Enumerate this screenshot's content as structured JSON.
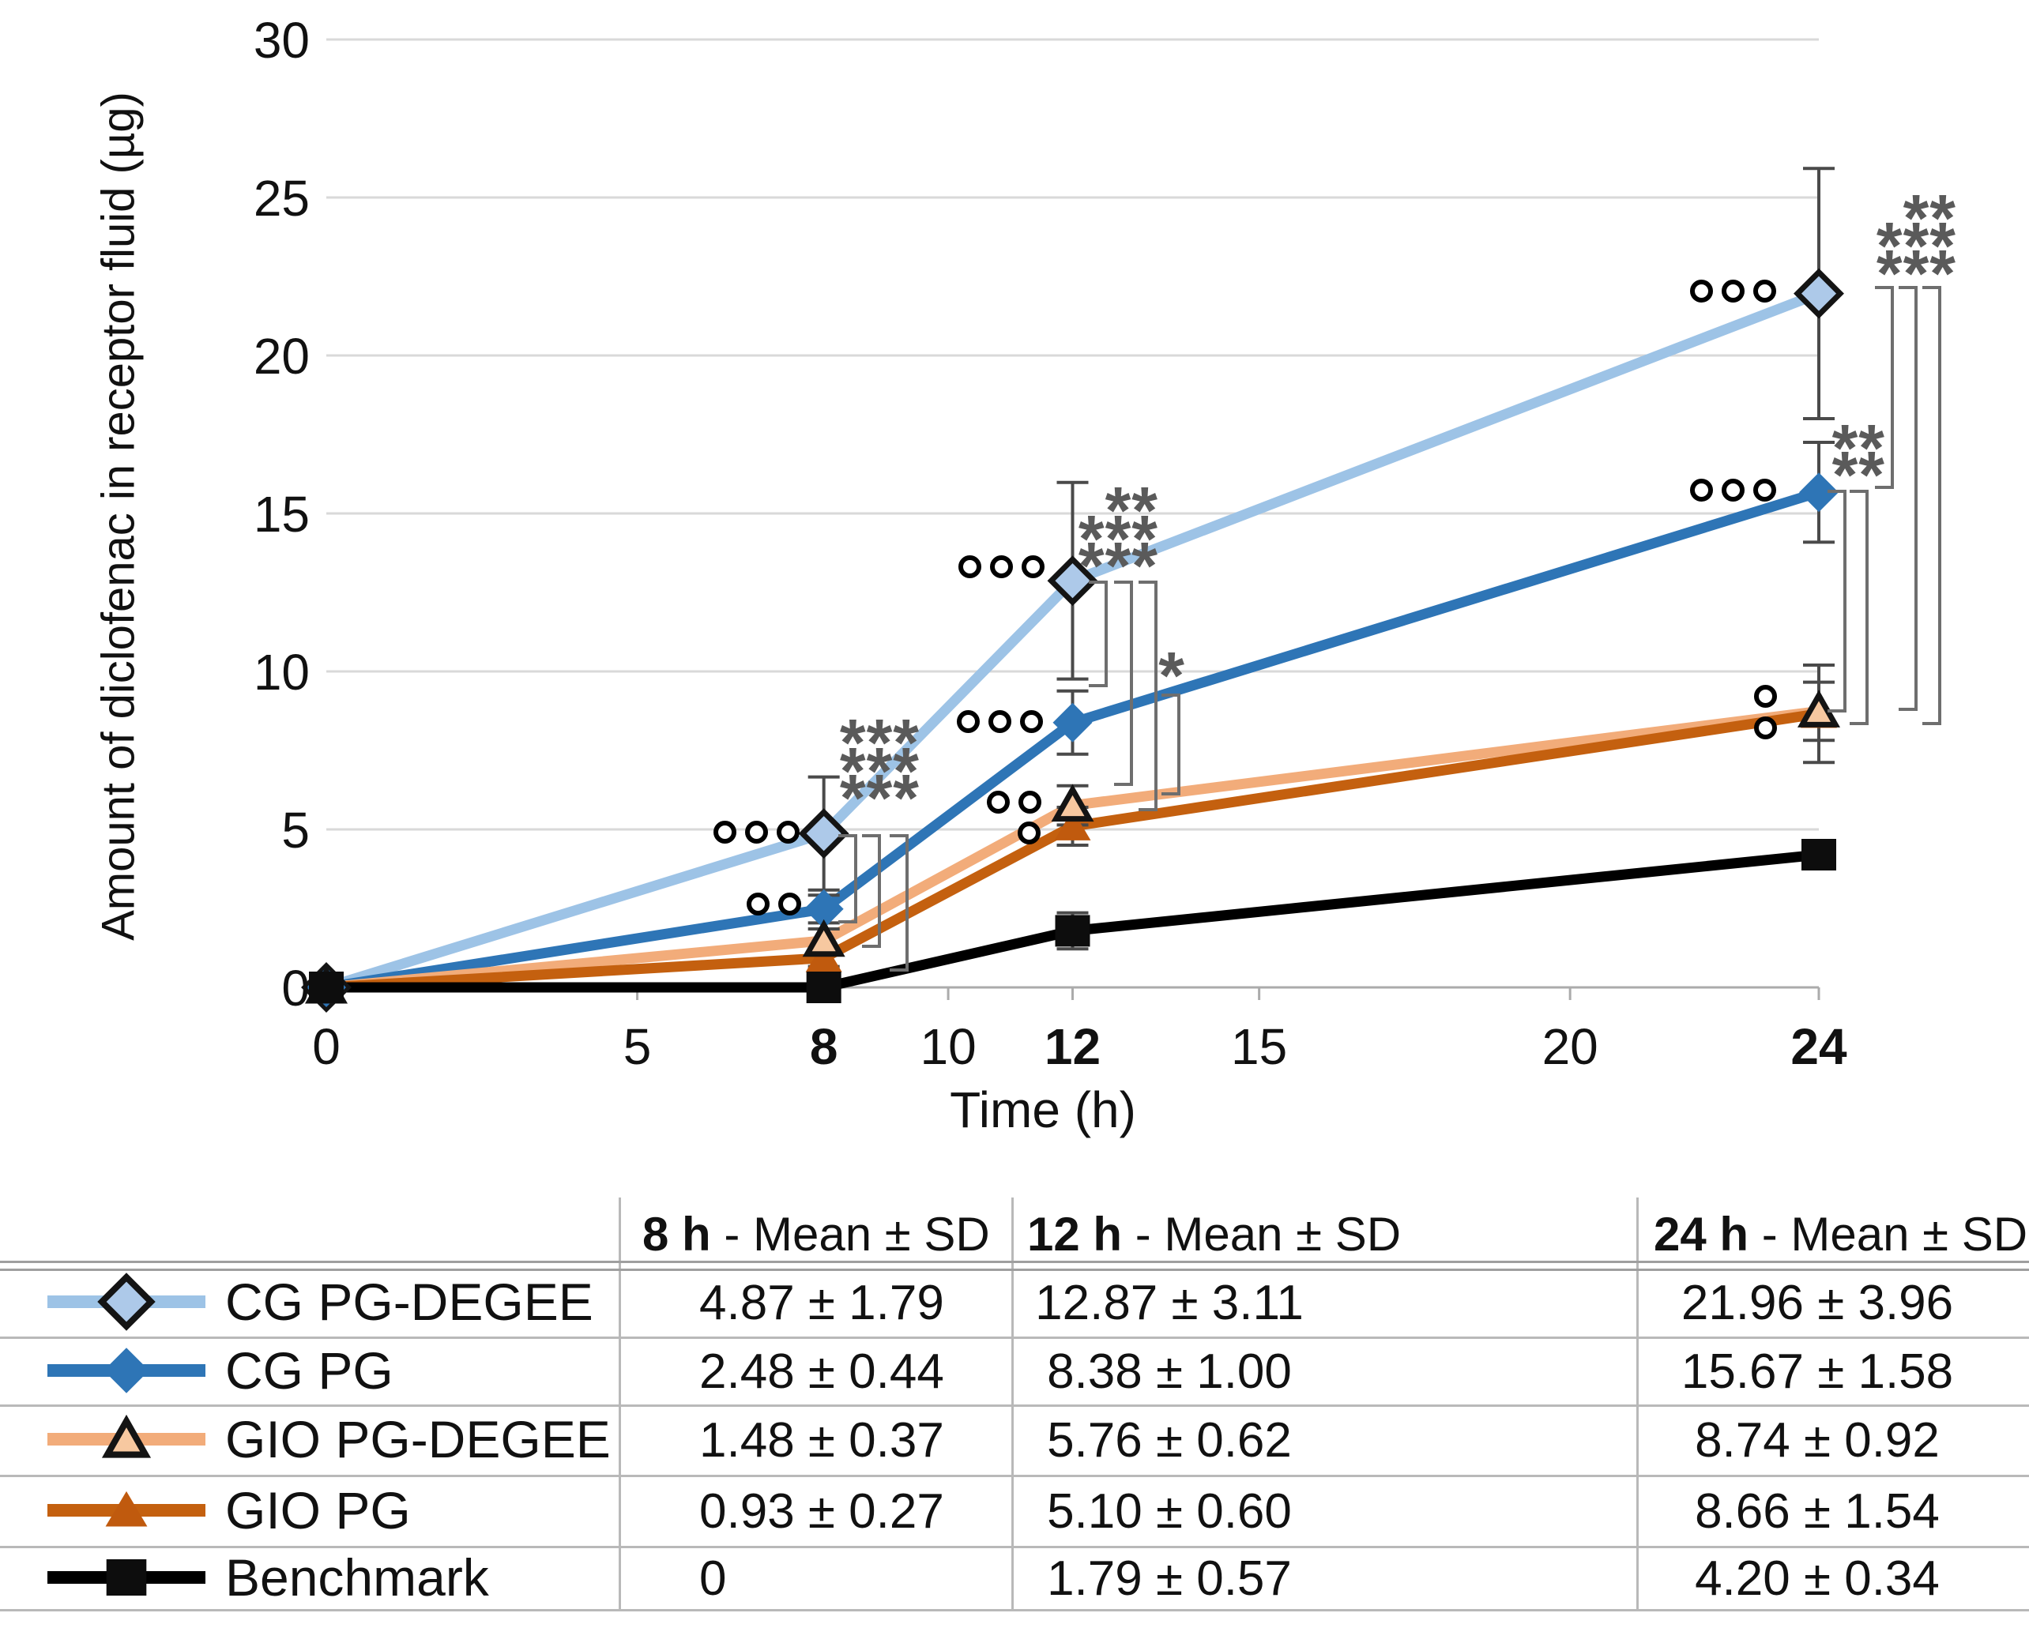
{
  "chart_data": {
    "type": "line",
    "title": "",
    "xlabel": "Time (h)",
    "ylabel": "Amount of diclofenac in receptor fluid (µg)",
    "xlim": [
      0,
      24
    ],
    "ylim": [
      0,
      30
    ],
    "grid": "horizontal",
    "legend_position": "table-below",
    "x_ticks": [
      {
        "v": 0,
        "label": "0",
        "bold": false
      },
      {
        "v": 5,
        "label": "5",
        "bold": false
      },
      {
        "v": 8,
        "label": "8",
        "bold": true
      },
      {
        "v": 10,
        "label": "10",
        "bold": false
      },
      {
        "v": 12,
        "label": "12",
        "bold": true
      },
      {
        "v": 15,
        "label": "15",
        "bold": false
      },
      {
        "v": 20,
        "label": "20",
        "bold": false
      },
      {
        "v": 24,
        "label": "24",
        "bold": true
      }
    ],
    "y_ticks": [
      0,
      5,
      10,
      15,
      20,
      25,
      30
    ],
    "x": [
      0,
      8,
      12,
      24
    ],
    "series": [
      {
        "name": "CG PG-DEGEE",
        "color": "#9DC3E6",
        "marker": "diamond-open",
        "marker_fill": "#ADC9E9",
        "values": [
          0,
          4.87,
          12.87,
          21.96
        ],
        "sd": [
          0,
          1.79,
          3.11,
          3.96
        ]
      },
      {
        "name": "CG PG",
        "color": "#2E75B6",
        "marker": "diamond-filled",
        "marker_fill": "#2E75B6",
        "values": [
          0,
          2.48,
          8.38,
          15.67
        ],
        "sd": [
          0,
          0.44,
          1.0,
          1.58
        ]
      },
      {
        "name": "GIO PG-DEGEE",
        "color": "#F2AC7A",
        "marker": "triangle-open",
        "marker_fill": "#F7C8A0",
        "values": [
          0,
          1.48,
          5.76,
          8.74
        ],
        "sd": [
          0,
          0.37,
          0.62,
          0.92
        ]
      },
      {
        "name": "GIO PG",
        "color": "#C4600F",
        "marker": "triangle-filled",
        "marker_fill": "#C05A0E",
        "values": [
          0,
          0.93,
          5.1,
          8.66
        ],
        "sd": [
          0,
          0.27,
          0.6,
          1.54
        ]
      },
      {
        "name": "Benchmark",
        "color": "#000000",
        "marker": "square-filled",
        "marker_fill": "#0d0d0d",
        "values": [
          0,
          0,
          1.79,
          4.2
        ],
        "sd": [
          0,
          0,
          0.57,
          0.34
        ]
      }
    ],
    "annotations": {
      "circle_symbol": "°",
      "asterisk_symbol": "*",
      "circle_groups": [
        {
          "n": 3,
          "x_right": 1012,
          "y": 1053
        },
        {
          "n": 2,
          "x_right": 1014,
          "y": 1144
        },
        {
          "n": 3,
          "x_right": 1322,
          "y": 717
        },
        {
          "n": 3,
          "x_right": 1320,
          "y": 913
        },
        {
          "n": 2,
          "x_right": 1318,
          "y": 1015
        },
        {
          "n": 1,
          "x_right": 1317,
          "y": 1054
        },
        {
          "n": 3,
          "x_right": 2248,
          "y": 368
        },
        {
          "n": 3,
          "x_right": 2248,
          "y": 620
        },
        {
          "n": 1,
          "x_right": 2249,
          "y": 881
        },
        {
          "n": 1,
          "x_right": 2249,
          "y": 921
        }
      ],
      "asterisk_blocks": [
        {
          "x_right": 1164,
          "rows": [
            "***",
            "***",
            "***"
          ],
          "row_y": [
            930,
            966,
            1000
          ]
        },
        {
          "x_right": 1466,
          "rows": [
            "**",
            "***",
            "***"
          ],
          "row_y": [
            636,
            672,
            706
          ]
        },
        {
          "x_right": 1500,
          "rows": [
            "*"
          ],
          "row_y": [
            845
          ]
        },
        {
          "x_right": 2476,
          "rows": [
            "**",
            "***",
            "***"
          ],
          "row_y": [
            266,
            301,
            336
          ]
        },
        {
          "x_right": 2386,
          "rows": [
            "**",
            "**"
          ],
          "row_y": [
            557,
            591
          ]
        }
      ],
      "brackets": [
        {
          "x": 1083,
          "y1": 1058,
          "y2": 1167
        },
        {
          "x": 1113,
          "y1": 1058,
          "y2": 1198
        },
        {
          "x": 1148,
          "y1": 1058,
          "y2": 1228
        },
        {
          "x": 1400,
          "y1": 737,
          "y2": 868
        },
        {
          "x": 1432,
          "y1": 737,
          "y2": 993
        },
        {
          "x": 1463,
          "y1": 737,
          "y2": 1025
        },
        {
          "x": 1492,
          "y1": 880,
          "y2": 1005
        },
        {
          "x": 2395,
          "y1": 364,
          "y2": 617
        },
        {
          "x": 2425,
          "y1": 364,
          "y2": 898
        },
        {
          "x": 2455,
          "y1": 364,
          "y2": 916
        },
        {
          "x": 2335,
          "y1": 622,
          "y2": 900
        },
        {
          "x": 2363,
          "y1": 622,
          "y2": 916
        }
      ]
    }
  },
  "table": {
    "headers": [
      {
        "time": "8 h",
        "rest": " - Mean ± SD"
      },
      {
        "time": "12 h",
        "rest": " - Mean ± SD"
      },
      {
        "time": "24 h",
        "rest": " - Mean ± SD"
      }
    ],
    "rows": [
      {
        "label": "CG PG-DEGEE",
        "values": [
          "4.87 ± 1.79",
          "12.87 ± 3.11",
          "21.96 ± 3.96"
        ]
      },
      {
        "label": "CG PG",
        "values": [
          "2.48 ± 0.44",
          "8.38 ± 1.00",
          "15.67 ± 1.58"
        ]
      },
      {
        "label": "GIO PG-DEGEE",
        "values": [
          "1.48 ± 0.37",
          "5.76 ± 0.62",
          "8.74 ± 0.92"
        ]
      },
      {
        "label": "GIO PG",
        "values": [
          "0.93 ± 0.27",
          "5.10 ± 0.60",
          "8.66 ± 1.54"
        ]
      },
      {
        "label": "Benchmark",
        "values": [
          "0",
          "1.79 ± 0.57",
          "4.20 ± 0.34"
        ]
      }
    ]
  }
}
